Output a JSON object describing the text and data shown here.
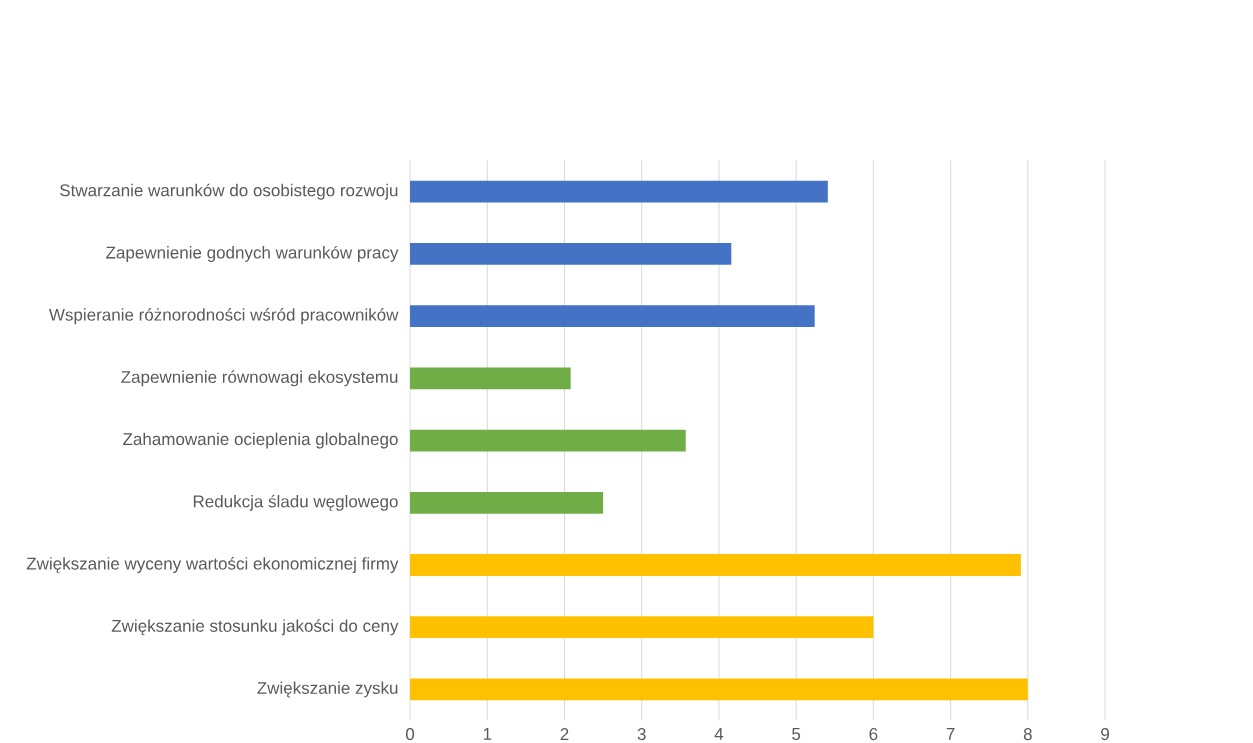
{
  "chart_data": {
    "type": "bar",
    "orientation": "horizontal",
    "categories": [
      "Stwarzanie warunków do osobistego rozwoju",
      "Zapewnienie godnych warunków pracy",
      "Wspieranie różnorodności wśród pracowników",
      "Zapewnienie równowagi ekosystemu",
      "Zahamowanie ocieplenia globalnego",
      "Redukcja śladu węglowego",
      "Zwiększanie wyceny wartości ekonomicznej firmy",
      "Zwiększanie stosunku jakości do ceny",
      "Zwiększanie zysku"
    ],
    "values": [
      5.41,
      4.16,
      5.24,
      2.08,
      3.57,
      2.5,
      7.91,
      6,
      8
    ],
    "colors": [
      "#4472c4",
      "#4472c4",
      "#4472c4",
      "#70ad47",
      "#70ad47",
      "#70ad47",
      "#ffc000",
      "#ffc000",
      "#ffc000"
    ],
    "xlim": [
      0,
      9
    ],
    "xticks": [
      0,
      1,
      2,
      3,
      4,
      5,
      6,
      7,
      8,
      9
    ],
    "grid": "x"
  }
}
